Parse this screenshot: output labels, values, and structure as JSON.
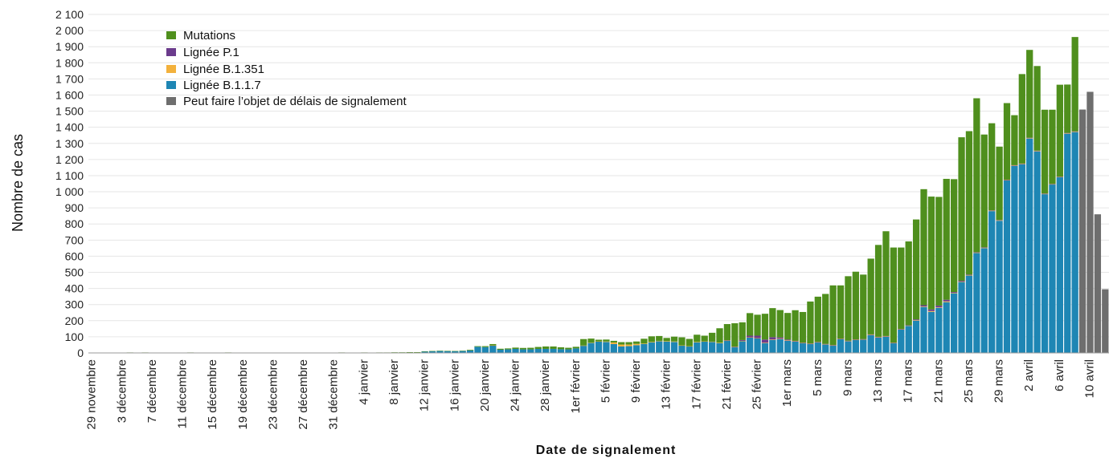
{
  "chart_data": {
    "type": "bar",
    "stacked": true,
    "xlabel": "Date de signalement",
    "ylabel": "Nombre de cas",
    "ylim": [
      0,
      2100
    ],
    "yticks": [
      "0",
      "100",
      "200",
      "300",
      "400",
      "500",
      "600",
      "700",
      "800",
      "900",
      "1 000",
      "1 100",
      "1 200",
      "1 300",
      "1 400",
      "1 500",
      "1 600",
      "1 700",
      "1 800",
      "1 900",
      "2 000",
      "2 100"
    ],
    "grid": true,
    "legend_position": "top-left",
    "colors": {
      "mutations": "#4f8f1d",
      "p1": "#6b3b8c",
      "b1351": "#f3b13c",
      "b117": "#1e86b4",
      "delay": "#6e6e6e"
    },
    "legend": [
      {
        "key": "mutations",
        "label": "Mutations"
      },
      {
        "key": "p1",
        "label": "Lignée P.1"
      },
      {
        "key": "b1351",
        "label": "Lignée B.1.351"
      },
      {
        "key": "b117",
        "label": "Lignée B.1.1.7"
      },
      {
        "key": "delay",
        "label": "Peut faire l’objet de délais de signalement"
      }
    ],
    "x_tick_labels": [
      {
        "index": 0,
        "text": "29  novembre"
      },
      {
        "index": 4,
        "text": "3  décembre"
      },
      {
        "index": 8,
        "text": "7  décembre"
      },
      {
        "index": 12,
        "text": "11  décembre"
      },
      {
        "index": 16,
        "text": "15  décembre"
      },
      {
        "index": 20,
        "text": "19  décembre"
      },
      {
        "index": 24,
        "text": "23  décembre"
      },
      {
        "index": 28,
        "text": "27  décembre"
      },
      {
        "index": 32,
        "text": "31  décembre"
      },
      {
        "index": 36,
        "text": "4  janvier"
      },
      {
        "index": 40,
        "text": "8  janvier"
      },
      {
        "index": 44,
        "text": "12  janvier"
      },
      {
        "index": 48,
        "text": "16  janvier"
      },
      {
        "index": 52,
        "text": "20  janvier"
      },
      {
        "index": 56,
        "text": "24  janvier"
      },
      {
        "index": 60,
        "text": "28  janvier"
      },
      {
        "index": 64,
        "text": "1er février"
      },
      {
        "index": 68,
        "text": "5  février"
      },
      {
        "index": 72,
        "text": "9  février"
      },
      {
        "index": 76,
        "text": "13  février"
      },
      {
        "index": 80,
        "text": "17  février"
      },
      {
        "index": 84,
        "text": "21  février"
      },
      {
        "index": 88,
        "text": "25  février"
      },
      {
        "index": 92,
        "text": "1er mars"
      },
      {
        "index": 96,
        "text": "5  mars"
      },
      {
        "index": 100,
        "text": "9  mars"
      },
      {
        "index": 104,
        "text": "13  mars"
      },
      {
        "index": 108,
        "text": "17  mars"
      },
      {
        "index": 112,
        "text": "21  mars"
      },
      {
        "index": 116,
        "text": "25  mars"
      },
      {
        "index": 120,
        "text": "29  mars"
      },
      {
        "index": 124,
        "text": "2  avril"
      },
      {
        "index": 128,
        "text": "6  avril"
      },
      {
        "index": 132,
        "text": "10  avril"
      }
    ],
    "series": [
      {
        "key": "b117",
        "name": "Lignée B.1.1.7",
        "values": [
          0,
          0,
          0,
          0,
          0,
          0,
          0,
          0,
          0,
          0,
          0,
          0,
          0,
          0,
          0,
          0,
          0,
          0,
          0,
          0,
          0,
          0,
          0,
          0,
          0,
          0,
          0,
          0,
          0,
          0,
          0,
          0,
          0,
          0,
          0,
          0,
          0,
          0,
          1,
          1,
          2,
          2,
          3,
          3,
          8,
          10,
          12,
          11,
          10,
          12,
          15,
          38,
          36,
          45,
          20,
          22,
          25,
          22,
          22,
          25,
          25,
          25,
          23,
          22,
          28,
          45,
          62,
          70,
          68,
          55,
          40,
          42,
          48,
          55,
          65,
          72,
          70,
          68,
          45,
          40,
          65,
          70,
          68,
          60,
          75,
          35,
          72,
          95,
          90,
          60,
          80,
          85,
          75,
          70,
          60,
          55,
          65,
          52,
          45,
          85,
          72,
          80,
          82,
          110,
          95,
          100,
          60,
          145,
          168,
          200,
          285,
          255,
          280,
          315,
          370,
          440,
          480,
          620,
          650,
          880,
          820,
          1070,
          1160,
          1170,
          1330,
          1250,
          985,
          1045,
          1090,
          1360,
          1370,
          0,
          0,
          0,
          0
        ]
      },
      {
        "key": "b1351",
        "name": "Lignée B.1.351",
        "values": [
          0,
          0,
          0,
          0,
          0,
          0,
          0,
          0,
          0,
          0,
          0,
          0,
          0,
          0,
          0,
          0,
          0,
          0,
          0,
          0,
          0,
          0,
          0,
          0,
          0,
          0,
          0,
          0,
          0,
          0,
          0,
          0,
          0,
          0,
          0,
          0,
          0,
          0,
          0,
          0,
          0,
          0,
          0,
          0,
          0,
          0,
          0,
          0,
          0,
          0,
          0,
          0,
          0,
          2,
          0,
          0,
          0,
          0,
          0,
          0,
          0,
          0,
          0,
          0,
          0,
          1,
          2,
          2,
          3,
          10,
          12,
          10,
          8,
          3,
          3,
          3,
          3,
          3,
          2,
          2,
          3,
          2,
          2,
          3,
          2,
          2,
          3,
          2,
          2,
          3,
          3,
          3,
          3,
          3,
          2,
          2,
          2,
          2,
          2,
          2,
          2,
          2,
          2,
          3,
          3,
          3,
          2,
          2,
          2,
          3,
          3,
          5,
          3,
          5,
          3,
          3,
          3,
          3,
          3,
          3,
          3,
          3,
          3,
          3,
          3,
          3,
          2,
          2,
          2,
          3,
          3,
          0,
          0,
          0,
          0
        ]
      },
      {
        "key": "p1",
        "name": "Lignée P.1",
        "values": [
          0,
          0,
          0,
          0,
          0,
          0,
          0,
          0,
          0,
          0,
          0,
          0,
          0,
          0,
          0,
          0,
          0,
          0,
          0,
          0,
          0,
          0,
          0,
          0,
          0,
          0,
          0,
          0,
          0,
          0,
          0,
          0,
          0,
          0,
          0,
          0,
          0,
          0,
          0,
          0,
          0,
          0,
          0,
          0,
          0,
          0,
          0,
          0,
          0,
          0,
          0,
          0,
          0,
          0,
          0,
          0,
          0,
          0,
          0,
          0,
          0,
          0,
          0,
          0,
          0,
          0,
          0,
          0,
          0,
          0,
          0,
          0,
          0,
          0,
          0,
          0,
          0,
          0,
          0,
          0,
          0,
          0,
          0,
          0,
          2,
          2,
          5,
          10,
          15,
          20,
          15,
          8,
          5,
          2,
          2,
          2,
          2,
          2,
          2,
          2,
          2,
          2,
          2,
          2,
          2,
          2,
          2,
          2,
          2,
          5,
          8,
          10,
          10,
          10,
          5,
          5,
          3,
          2,
          2,
          2,
          2,
          2,
          2,
          2,
          2,
          2,
          2,
          2,
          2,
          2,
          2,
          0,
          0,
          0,
          0
        ]
      },
      {
        "key": "mutations",
        "name": "Mutations",
        "values": [
          2,
          1,
          1,
          1,
          2,
          3,
          2,
          3,
          2,
          2,
          1,
          2,
          2,
          3,
          2,
          2,
          1,
          2,
          3,
          2,
          2,
          2,
          2,
          2,
          2,
          2,
          2,
          2,
          2,
          2,
          2,
          2,
          2,
          3,
          2,
          2,
          3,
          2,
          2,
          2,
          2,
          2,
          2,
          2,
          2,
          2,
          2,
          2,
          2,
          2,
          4,
          4,
          6,
          8,
          6,
          6,
          8,
          9,
          10,
          12,
          15,
          15,
          12,
          10,
          10,
          40,
          25,
          10,
          12,
          10,
          15,
          15,
          15,
          30,
          35,
          30,
          20,
          30,
          50,
          45,
          45,
          35,
          55,
          90,
          100,
          145,
          110,
          140,
          130,
          160,
          180,
          170,
          165,
          190,
          190,
          260,
          280,
          310,
          370,
          330,
          400,
          420,
          400,
          470,
          570,
          650,
          590,
          505,
          520,
          620,
          720,
          700,
          675,
          750,
          700,
          890,
          890,
          955,
          700,
          540,
          455,
          475,
          310,
          555,
          545,
          525,
          520,
          460,
          570,
          300,
          585,
          0,
          0,
          0,
          0
        ]
      },
      {
        "key": "delay",
        "name": "Peut faire l’objet de délais de signalement",
        "values": [
          0,
          0,
          0,
          0,
          0,
          0,
          0,
          0,
          0,
          0,
          0,
          0,
          0,
          0,
          0,
          0,
          0,
          0,
          0,
          0,
          0,
          0,
          0,
          0,
          0,
          0,
          0,
          0,
          0,
          0,
          0,
          0,
          0,
          0,
          0,
          0,
          0,
          0,
          0,
          0,
          0,
          0,
          0,
          0,
          0,
          0,
          0,
          0,
          0,
          0,
          0,
          0,
          0,
          0,
          0,
          0,
          0,
          0,
          0,
          0,
          0,
          0,
          0,
          0,
          0,
          0,
          0,
          0,
          0,
          0,
          0,
          0,
          0,
          0,
          0,
          0,
          0,
          0,
          0,
          0,
          0,
          0,
          0,
          0,
          0,
          0,
          0,
          0,
          0,
          0,
          0,
          0,
          0,
          0,
          0,
          0,
          0,
          0,
          0,
          0,
          0,
          0,
          0,
          0,
          0,
          0,
          0,
          0,
          0,
          0,
          0,
          0,
          0,
          0,
          0,
          0,
          0,
          0,
          0,
          0,
          0,
          0,
          0,
          0,
          0,
          0,
          0,
          0,
          0,
          0,
          0,
          1510,
          1620,
          860,
          395
        ]
      }
    ]
  }
}
